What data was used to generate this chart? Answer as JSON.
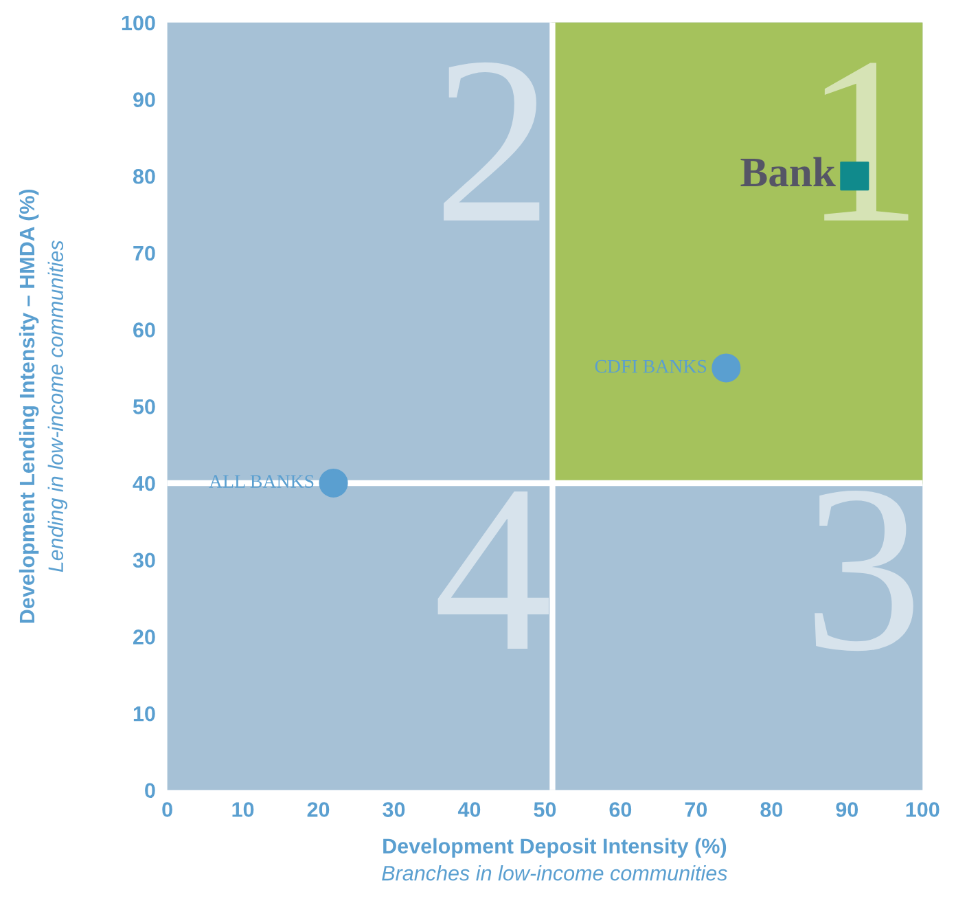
{
  "chart_data": {
    "type": "scatter",
    "xlabel": "Development Deposit Intensity (%)\nBranches in low-income communities",
    "ylabel": "Development Lending Intensity – HMDA (%)\nLending in low-income communities",
    "series": [
      {
        "name": "ALL BANKS",
        "color": "#5a9fd0",
        "x": [
          22
        ],
        "values": [
          40
        ],
        "marker": "circle"
      },
      {
        "name": "CDFI BANKS",
        "color": "#5a9fd0",
        "x": [
          74
        ],
        "values": [
          55
        ],
        "marker": "circle"
      },
      {
        "name": "Bank",
        "color": "#108a8c",
        "x": [
          91
        ],
        "values": [
          80
        ],
        "marker": "square"
      }
    ],
    "xlim": [
      0,
      100
    ],
    "ylim": [
      0,
      100
    ],
    "xticks": [
      0,
      10,
      20,
      30,
      40,
      50,
      60,
      70,
      80,
      90,
      100
    ],
    "yticks": [
      0,
      10,
      20,
      30,
      40,
      50,
      60,
      70,
      80,
      90,
      100
    ],
    "ref_lines": [
      {
        "axis": "x",
        "value": 51,
        "color": "#ffffff"
      },
      {
        "axis": "y",
        "value": 40,
        "color": "#ffffff"
      }
    ],
    "annotations": [
      "1",
      "2",
      "3",
      "4"
    ],
    "grid": false,
    "legend": false
  }
}
